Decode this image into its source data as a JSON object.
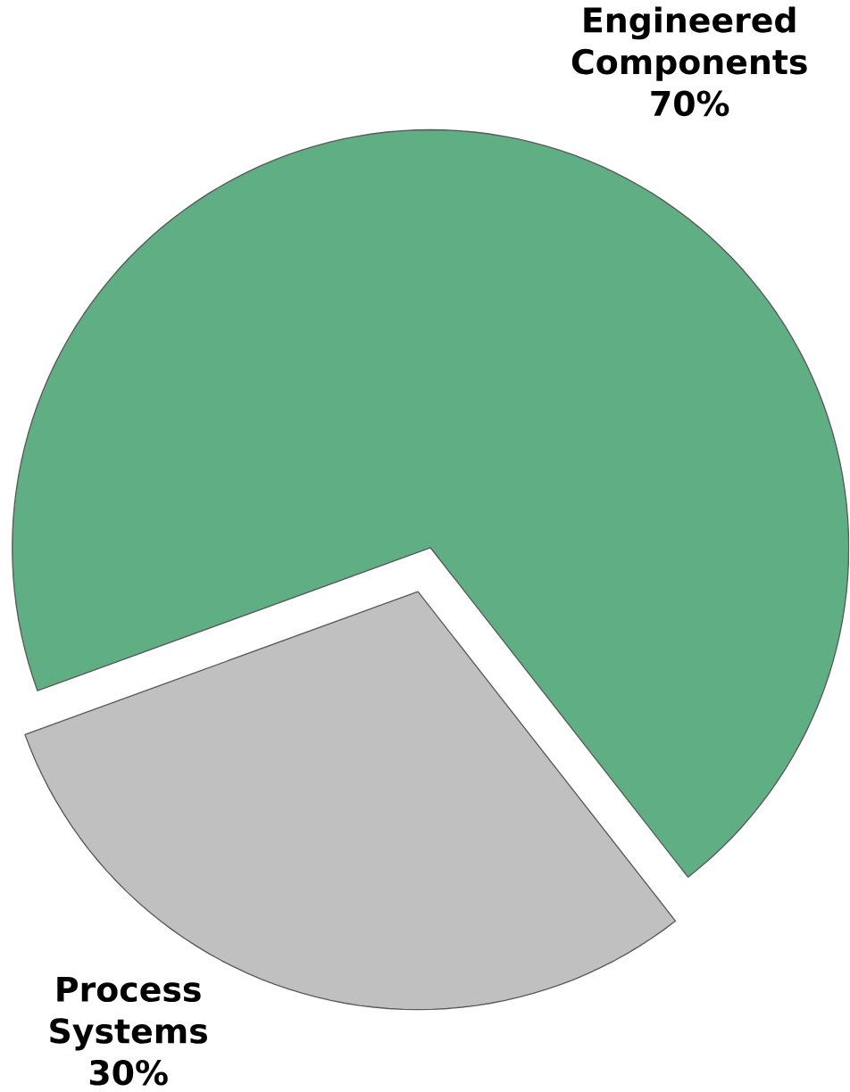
{
  "chart_data": {
    "type": "pie",
    "categories": [
      "Engineered Components",
      "Process Systems"
    ],
    "values": [
      70,
      30
    ],
    "value_labels": [
      "70%",
      "30%"
    ],
    "colors": [
      "#5fae84",
      "#c0c0c0"
    ]
  }
}
